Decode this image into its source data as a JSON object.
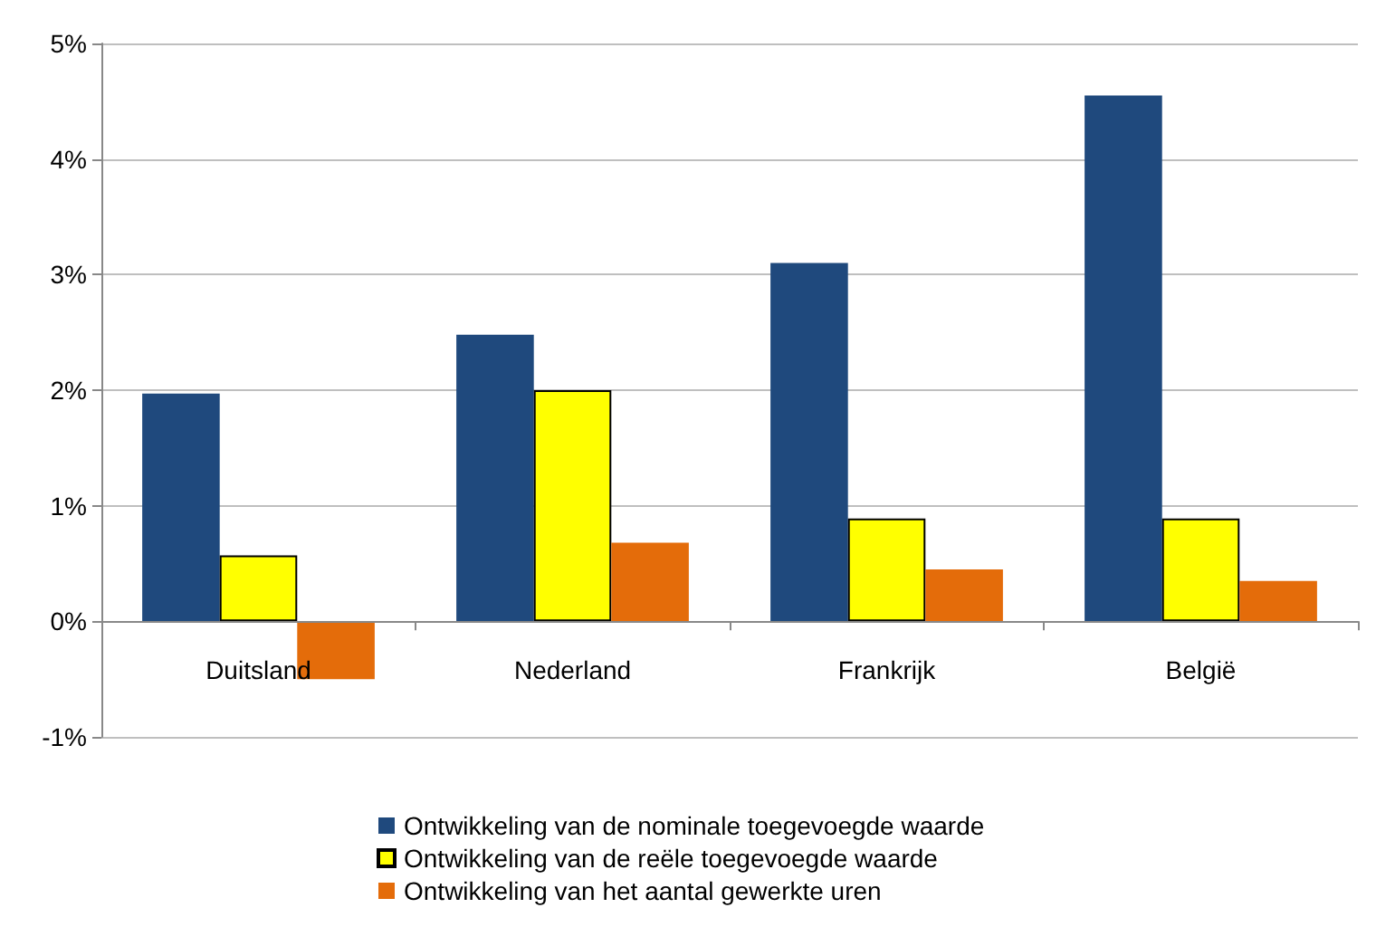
{
  "chart_data": {
    "type": "bar",
    "categories": [
      "Duitsland",
      "Nederland",
      "Frankrijk",
      "België"
    ],
    "series": [
      {
        "name": "Ontwikkeling van de nominale toegevoegde waarde",
        "color": "#1f497d",
        "values": [
          1.97,
          2.48,
          3.1,
          4.55
        ]
      },
      {
        "name": "Ontwikkeling van de reële toegevoegde waarde",
        "color": "#ffff00",
        "values": [
          0.57,
          2.0,
          0.89,
          0.89
        ]
      },
      {
        "name": "Ontwikkeling van het aantal gewerkte uren",
        "color": "#e46c0a",
        "values": [
          -0.5,
          0.68,
          0.45,
          0.35
        ]
      }
    ],
    "ylim": [
      -1,
      5
    ],
    "yticks": [
      {
        "value": -1,
        "label": "-1%"
      },
      {
        "value": 0,
        "label": "0%"
      },
      {
        "value": 1,
        "label": "1%"
      },
      {
        "value": 2,
        "label": "2%"
      },
      {
        "value": 3,
        "label": "3%"
      },
      {
        "value": 4,
        "label": "4%"
      },
      {
        "value": 5,
        "label": "5%"
      }
    ],
    "grid": "y",
    "legend": "bottom"
  }
}
